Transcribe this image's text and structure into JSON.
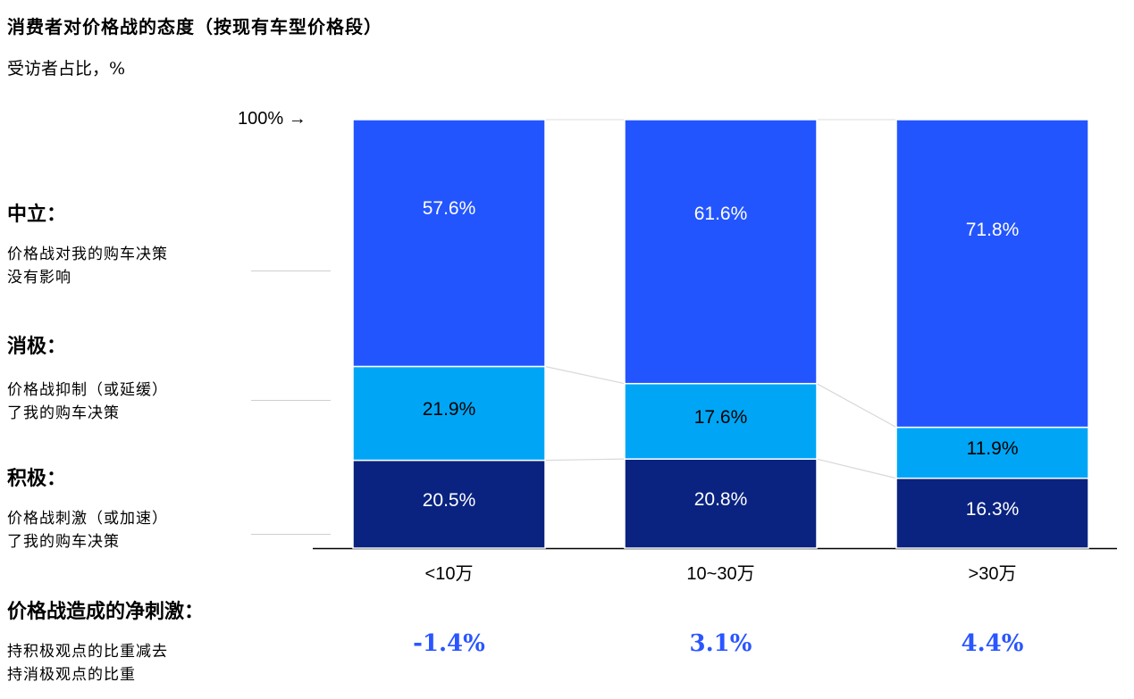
{
  "title": "消费者对价格战的态度（按现有车型价格段）",
  "subtitle": "受访者占比，%",
  "top_marker": "100% →",
  "legend_groups": [
    {
      "heading": "中立：",
      "description": "价格战对我的购车决策\n没有影响"
    },
    {
      "heading": "消极：",
      "description": "价格战抑制（或延缓）\n了我的购车决策"
    },
    {
      "heading": "积极：",
      "description": "价格战刺激（或加速）\n了我的购车决策"
    }
  ],
  "net": {
    "heading": "价格战造成的净刺激：",
    "description": "持积极观点的比重减去\n持消极观点的比重",
    "values": [
      "-1.4%",
      "3.1%",
      "4.4%"
    ]
  },
  "colors": {
    "neutral": "#2355ff",
    "negative": "#00a6f5",
    "positive": "#0a2380",
    "net_value": "#2a56ff"
  },
  "chart_data": {
    "type": "bar",
    "stacked": true,
    "categories": [
      "<10万",
      "10~30万",
      ">30万"
    ],
    "series": [
      {
        "name": "积极",
        "values": [
          20.5,
          20.8,
          16.3
        ],
        "labels": [
          "20.5%",
          "20.8%",
          "16.3%"
        ]
      },
      {
        "name": "消极",
        "values": [
          21.9,
          17.6,
          11.9
        ],
        "labels": [
          "21.9%",
          "17.6%",
          "11.9%"
        ]
      },
      {
        "name": "中立",
        "values": [
          57.6,
          61.6,
          71.8
        ],
        "labels": [
          "57.6%",
          "61.6%",
          "71.8%"
        ]
      }
    ],
    "ylim": [
      0,
      100
    ],
    "grid": false,
    "legend": "left"
  }
}
